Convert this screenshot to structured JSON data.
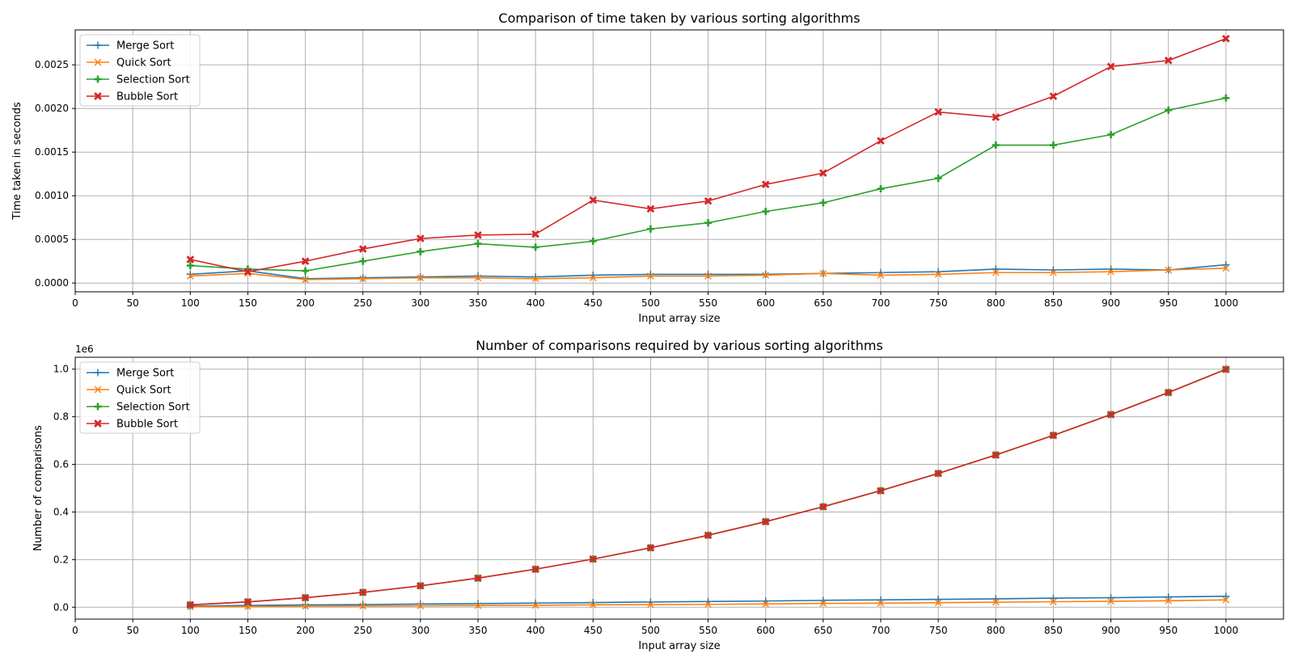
{
  "chart_data": [
    {
      "type": "line",
      "title": "Comparison of time taken by various sorting algorithms",
      "xlabel": "Input array size",
      "ylabel": "Time taken in seconds",
      "xlim": [
        0,
        1050
      ],
      "ylim": [
        -0.0001,
        0.0029
      ],
      "xticks": [
        0,
        50,
        100,
        150,
        200,
        250,
        300,
        350,
        400,
        450,
        500,
        550,
        600,
        650,
        700,
        750,
        800,
        850,
        900,
        950,
        1000
      ],
      "yticks": [
        0.0,
        0.0005,
        0.001,
        0.0015,
        0.002,
        0.0025
      ],
      "ytick_labels": [
        "0.0000",
        "0.0005",
        "0.0010",
        "0.0015",
        "0.0020",
        "0.0025"
      ],
      "offset_label": "",
      "grid": true,
      "legend_position": "upper-left",
      "x": [
        100,
        150,
        200,
        250,
        300,
        350,
        400,
        450,
        500,
        550,
        600,
        650,
        700,
        750,
        800,
        850,
        900,
        950,
        1000
      ],
      "series": [
        {
          "name": "Merge Sort",
          "color": "#1f77b4",
          "marker": "plus",
          "values": [
            0.0001,
            0.00014,
            5e-05,
            6e-05,
            7e-05,
            8e-05,
            7e-05,
            9e-05,
            0.0001,
            0.0001,
            0.0001,
            0.00011,
            0.00012,
            0.00013,
            0.00016,
            0.00015,
            0.00016,
            0.00015,
            0.00021
          ]
        },
        {
          "name": "Quick Sort",
          "color": "#ff7f0e",
          "marker": "x",
          "values": [
            8e-05,
            0.00011,
            4e-05,
            5e-05,
            6e-05,
            6e-05,
            5e-05,
            6e-05,
            8e-05,
            8e-05,
            9e-05,
            0.00011,
            9e-05,
            0.0001,
            0.00012,
            0.00012,
            0.00013,
            0.00015,
            0.00017
          ]
        },
        {
          "name": "Selection Sort",
          "color": "#2ca02c",
          "marker": "plus-bold",
          "values": [
            0.0002,
            0.00016,
            0.00014,
            0.00025,
            0.00036,
            0.00045,
            0.00041,
            0.00048,
            0.00062,
            0.00069,
            0.00082,
            0.00092,
            0.00108,
            0.0012,
            0.00158,
            0.00158,
            0.0017,
            0.00198,
            0.00212
          ]
        },
        {
          "name": "Bubble Sort",
          "color": "#d62728",
          "marker": "x-bold",
          "values": [
            0.00027,
            0.00013,
            0.00025,
            0.00039,
            0.00051,
            0.00055,
            0.00056,
            0.00095,
            0.00085,
            0.00094,
            0.00113,
            0.00126,
            0.00163,
            0.00196,
            0.0019,
            0.00214,
            0.00248,
            0.00255,
            0.0028
          ]
        }
      ]
    },
    {
      "type": "line",
      "title": "Number of comparisons required by various sorting algorithms",
      "xlabel": "Input array size",
      "ylabel": "Number of comparisons",
      "xlim": [
        0,
        1050
      ],
      "ylim": [
        -0.05,
        1.05
      ],
      "xticks": [
        0,
        50,
        100,
        150,
        200,
        250,
        300,
        350,
        400,
        450,
        500,
        550,
        600,
        650,
        700,
        750,
        800,
        850,
        900,
        950,
        1000
      ],
      "yticks": [
        0.0,
        0.2,
        0.4,
        0.6,
        0.8,
        1.0
      ],
      "ytick_labels": [
        "0.0",
        "0.2",
        "0.4",
        "0.6",
        "0.8",
        "1.0"
      ],
      "offset_label": "1e6",
      "grid": true,
      "legend_position": "upper-left",
      "x": [
        100,
        150,
        200,
        250,
        300,
        350,
        400,
        450,
        500,
        550,
        600,
        650,
        700,
        750,
        800,
        850,
        900,
        950,
        1000
      ],
      "series": [
        {
          "name": "Merge Sort",
          "color": "#1f77b4",
          "marker": "plus",
          "values": [
            0.0045,
            0.0075,
            0.0095,
            0.011,
            0.0135,
            0.015,
            0.0175,
            0.0195,
            0.022,
            0.024,
            0.026,
            0.029,
            0.031,
            0.033,
            0.035,
            0.038,
            0.04,
            0.043,
            0.046
          ]
        },
        {
          "name": "Quick Sort",
          "color": "#ff7f0e",
          "marker": "x",
          "values": [
            0.002,
            0.003,
            0.004,
            0.005,
            0.006,
            0.007,
            0.008,
            0.01,
            0.011,
            0.012,
            0.014,
            0.016,
            0.017,
            0.019,
            0.021,
            0.023,
            0.025,
            0.027,
            0.031
          ]
        },
        {
          "name": "Selection Sort",
          "color": "#2ca02c",
          "marker": "plus-bold",
          "values": [
            0.01,
            0.0225,
            0.04,
            0.0625,
            0.09,
            0.1225,
            0.16,
            0.2025,
            0.25,
            0.3025,
            0.36,
            0.4225,
            0.49,
            0.5625,
            0.64,
            0.7225,
            0.81,
            0.9025,
            1.0
          ]
        },
        {
          "name": "Bubble Sort",
          "color": "#d62728",
          "marker": "x-bold",
          "values": [
            0.0099,
            0.0223,
            0.0398,
            0.0623,
            0.0897,
            0.1222,
            0.1596,
            0.2021,
            0.2495,
            0.302,
            0.3594,
            0.4219,
            0.4893,
            0.5618,
            0.6392,
            0.7217,
            0.8091,
            0.9016,
            0.999
          ]
        }
      ]
    }
  ]
}
